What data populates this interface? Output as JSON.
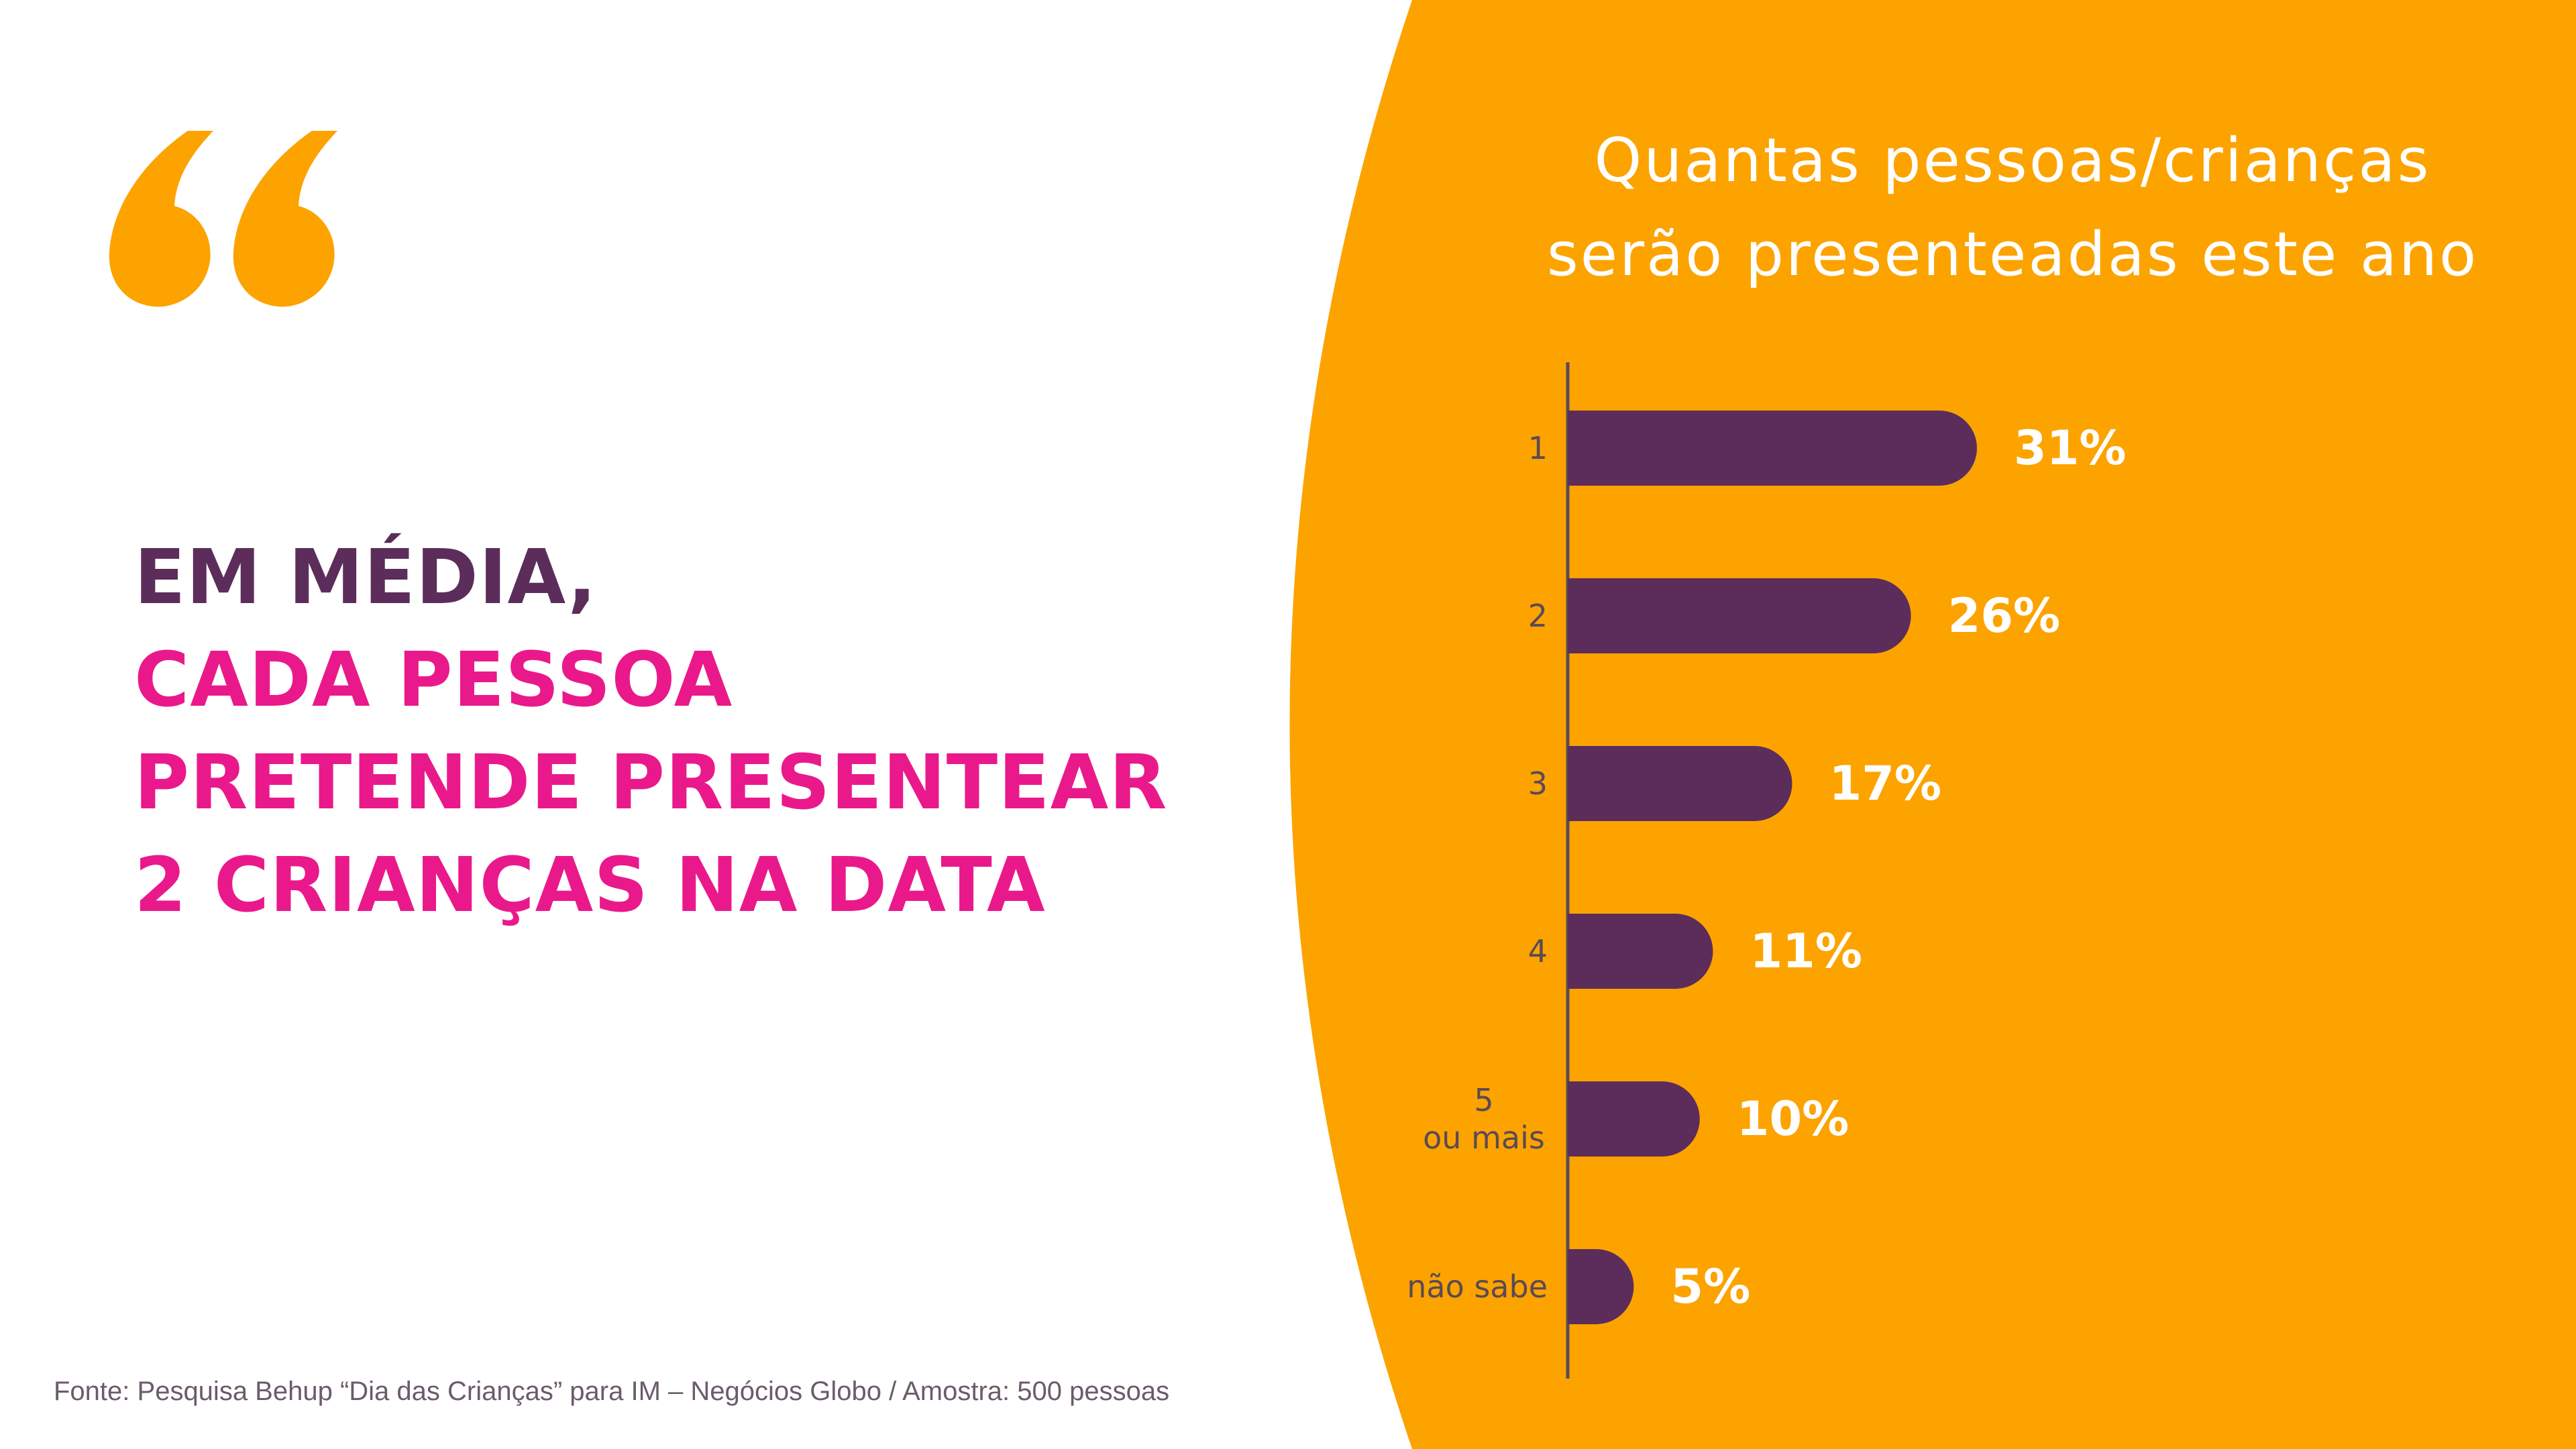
{
  "headline": {
    "line1": "EM MÉDIA,",
    "line2": "CADA PESSOA",
    "line3": "PRETENDE PRESENTEAR",
    "line4": "2 CRIANÇAS NA DATA"
  },
  "source": "Fonte: Pesquisa Behup “Dia das Crianças” para  IM – Negócios Globo / Amostra: 500 pessoas",
  "icons": {
    "quote": "opening-quote-icon"
  },
  "colors": {
    "accent": "#fca300",
    "bar": "#5c2d5a",
    "highlight": "#ea198b",
    "headline_dark": "#5c2d5a",
    "value_text": "#ffffff",
    "background": "#ffffff"
  },
  "chart_data": {
    "type": "bar",
    "orientation": "horizontal",
    "title_lines": [
      "Quantas pessoas/crianças",
      "serão presenteadas este ano"
    ],
    "categories": [
      [
        "1"
      ],
      [
        "2"
      ],
      [
        "3"
      ],
      [
        "4"
      ],
      [
        "5",
        "ou mais"
      ],
      [
        "não sabe"
      ]
    ],
    "values": [
      31,
      26,
      17,
      11,
      10,
      5
    ],
    "value_labels": [
      "31%",
      "26%",
      "17%",
      "11%",
      "10%",
      "5%"
    ],
    "unit": "%",
    "xlim": [
      0,
      31
    ],
    "grid": false,
    "legend": "none"
  }
}
